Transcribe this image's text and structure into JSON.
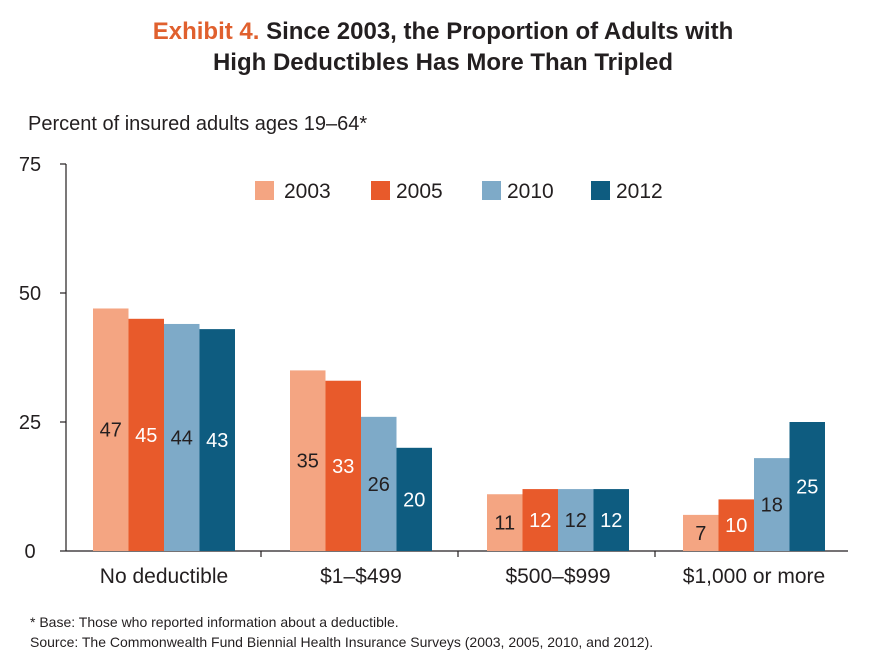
{
  "title": {
    "exhibit_label": "Exhibit 4.",
    "line1": "Since 2003, the Proportion of Adults with",
    "line2": "High Deductibles Has More Than Tripled"
  },
  "ylabel": "Percent of insured adults ages 19–64*",
  "footnotes": {
    "base": "* Base: Those who reported information about a deductible.",
    "source": "Source: The Commonwealth Fund Biennial Health Insurance Surveys (2003, 2005, 2010, and 2012)."
  },
  "colors": {
    "2003": "#f4a582",
    "2005": "#e85a2b",
    "2010": "#7eaac8",
    "2012": "#0e5c80"
  },
  "chart_data": {
    "type": "bar",
    "categories": [
      "No deductible",
      "$1–$499",
      "$500–$999",
      "$1,000 or more"
    ],
    "series": [
      {
        "name": "2003",
        "values": [
          47,
          35,
          11,
          7
        ]
      },
      {
        "name": "2005",
        "values": [
          45,
          33,
          12,
          10
        ]
      },
      {
        "name": "2010",
        "values": [
          44,
          26,
          12,
          18
        ]
      },
      {
        "name": "2012",
        "values": [
          43,
          20,
          12,
          25
        ]
      }
    ],
    "ylim": [
      0,
      75
    ],
    "yticks": [
      0,
      25,
      50,
      75
    ],
    "legend_position": "top-center",
    "grid": false
  }
}
